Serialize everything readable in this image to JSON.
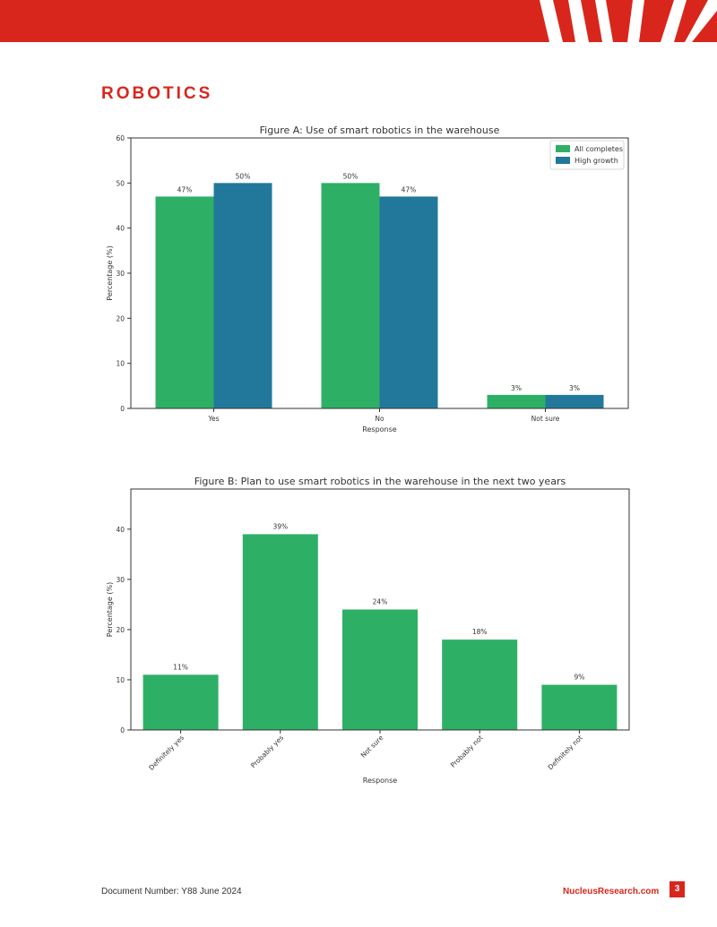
{
  "header": {
    "section_title": "ROBOTICS",
    "accent_color": "#d9261c"
  },
  "footer": {
    "document_number": "Document Number: Y88 June 2024",
    "website": "NucleusResearch.com",
    "page_number": "3"
  },
  "chart_data": [
    {
      "type": "bar",
      "title": "Figure A: Use of smart robotics in the warehouse",
      "xlabel": "Response",
      "ylabel": "Percentage (%)",
      "categories": [
        "Yes",
        "No",
        "Not sure"
      ],
      "series": [
        {
          "name": "All completes",
          "values": [
            47,
            50,
            3
          ],
          "labels": [
            "47%",
            "50%",
            "3%"
          ],
          "color": "#2eaf66"
        },
        {
          "name": "High growth",
          "values": [
            50,
            47,
            3
          ],
          "labels": [
            "50%",
            "47%",
            "3%"
          ],
          "color": "#22789b"
        }
      ],
      "ylim": [
        0,
        60
      ],
      "yticks": [
        "0",
        "10",
        "20",
        "30",
        "40",
        "50",
        "60"
      ],
      "legend": "top-right",
      "grid": false
    },
    {
      "type": "bar",
      "title": "Figure B: Plan to use smart robotics in the warehouse in the next two years",
      "xlabel": "Response",
      "ylabel": "Percentage (%)",
      "categories": [
        "Definitely yes",
        "Probably yes",
        "Not sure",
        "Probably not",
        "Definitely not"
      ],
      "values": [
        11,
        39,
        24,
        18,
        9
      ],
      "labels": [
        "11%",
        "39%",
        "24%",
        "18%",
        "9%"
      ],
      "color": "#2eaf66",
      "ylim": [
        0,
        48
      ],
      "yticks": [
        "0",
        "10",
        "20",
        "30",
        "40"
      ],
      "grid": false
    }
  ]
}
